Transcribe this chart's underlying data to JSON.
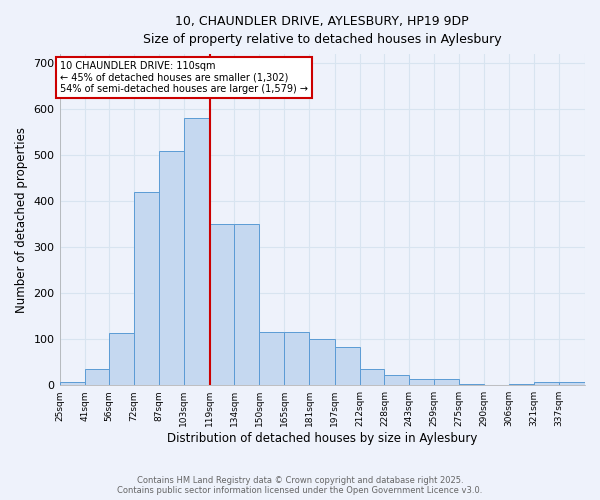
{
  "title_line1": "10, CHAUNDLER DRIVE, AYLESBURY, HP19 9DP",
  "title_line2": "Size of property relative to detached houses in Aylesbury",
  "xlabel": "Distribution of detached houses by size in Aylesbury",
  "ylabel": "Number of detached properties",
  "categories": [
    "25sqm",
    "41sqm",
    "56sqm",
    "72sqm",
    "87sqm",
    "103sqm",
    "119sqm",
    "134sqm",
    "150sqm",
    "165sqm",
    "181sqm",
    "197sqm",
    "212sqm",
    "228sqm",
    "243sqm",
    "259sqm",
    "275sqm",
    "290sqm",
    "306sqm",
    "321sqm",
    "337sqm"
  ],
  "values": [
    8,
    35,
    113,
    420,
    510,
    580,
    350,
    350,
    115,
    115,
    100,
    83,
    35,
    22,
    13,
    13,
    3,
    0,
    2,
    8,
    8
  ],
  "bar_color": "#c5d8f0",
  "bar_edge_color": "#5b9bd5",
  "background_color": "#eef2fb",
  "grid_color": "#d8e4f0",
  "red_line_color": "#cc0000",
  "annotation_text": "10 CHAUNDLER DRIVE: 110sqm\n← 45% of detached houses are smaller (1,302)\n54% of semi-detached houses are larger (1,579) →",
  "annotation_box_color": "#ffffff",
  "annotation_box_edge_color": "#cc0000",
  "footer_line1": "Contains HM Land Registry data © Crown copyright and database right 2025.",
  "footer_line2": "Contains public sector information licensed under the Open Government Licence v3.0.",
  "ylim": [
    0,
    720
  ],
  "yticks": [
    0,
    100,
    200,
    300,
    400,
    500,
    600,
    700
  ],
  "bin_edges": [
    17.5,
    33.5,
    48.5,
    64,
    79.5,
    95,
    111,
    126.5,
    142,
    157.5,
    173,
    189,
    204.5,
    220,
    235.5,
    251,
    266.5,
    282,
    297.5,
    313,
    328.5,
    345
  ]
}
